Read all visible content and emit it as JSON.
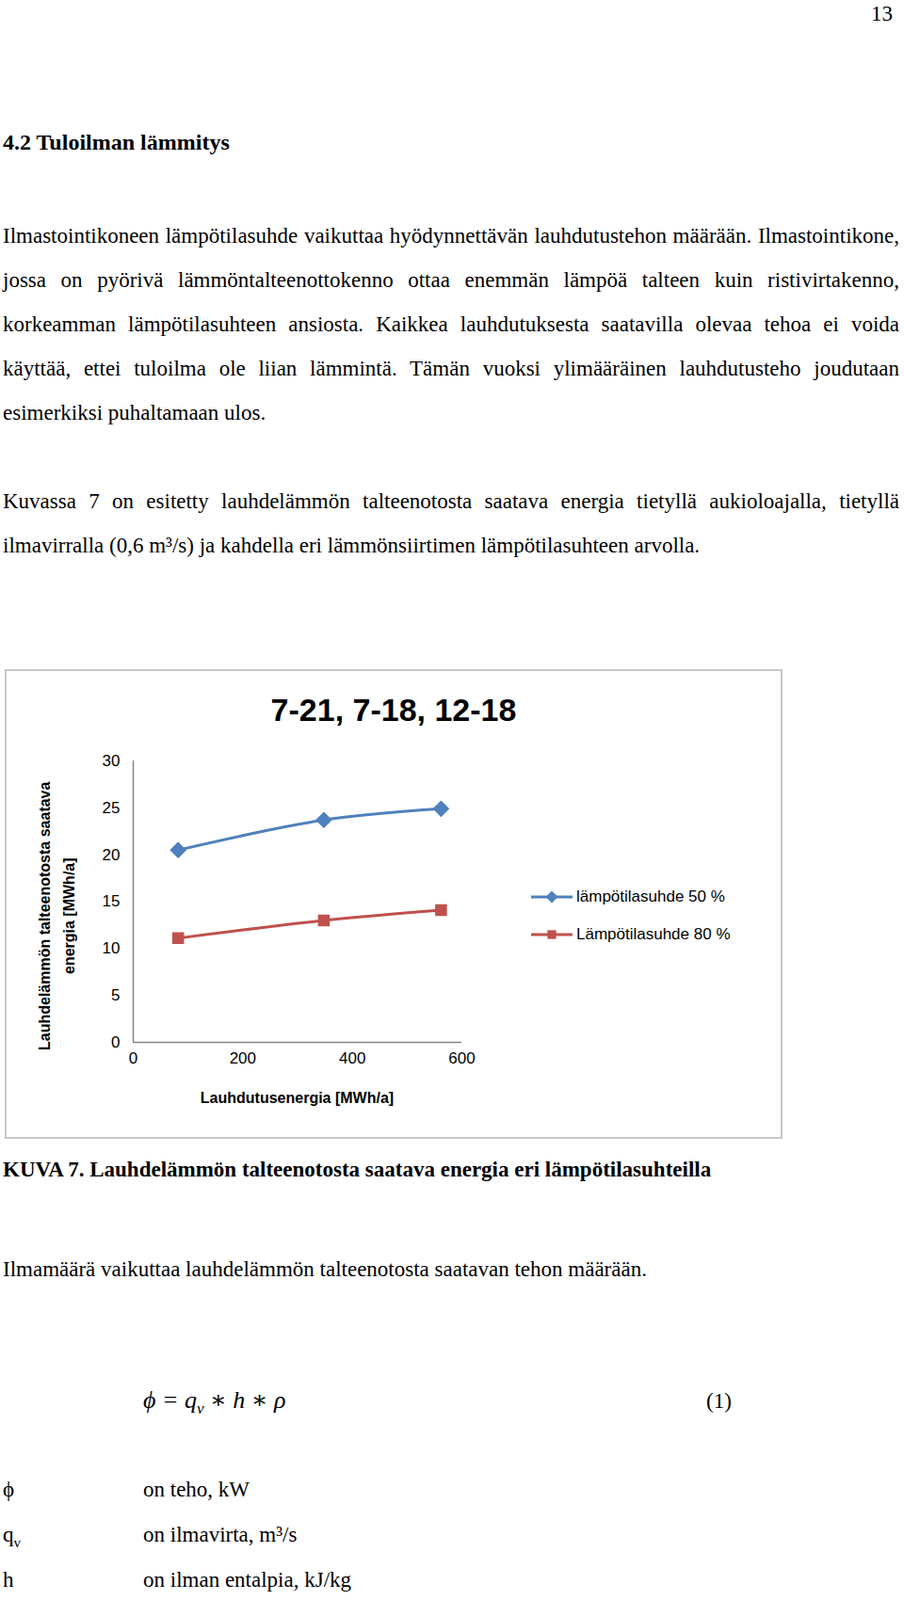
{
  "page_number": "13",
  "heading": "4.2 Tuloilman lämmitys",
  "paragraphs": [
    "Ilmastointikoneen lämpötilasuhde vaikuttaa hyödynnettävän lauhdutustehon määrään. Ilmastointikone, jossa on pyörivä lämmöntalteenottokenno ottaa enemmän lämpöä talteen kuin ristivirtakenno, korkeamman lämpötilasuhteen ansiosta. Kaikkea lauhdutuksesta saatavilla olevaa tehoa ei voida käyttää, ettei tuloilma ole liian lämmintä. Tämän vuoksi ylimääräinen lauhdutusteho joudutaan esimerkiksi puhaltamaan ulos.",
    "Kuvassa 7 on esitetty lauhdelämmön talteenotosta saatava energia tietyllä aukioloajalla, tietyllä ilmavirralla (0,6 m³/s) ja kahdella eri lämmönsiirtimen lämpötilasuhteen arvolla."
  ],
  "chart_data": {
    "type": "line",
    "title": "7-21, 7-18, 12-18",
    "x_label": "Lauhdutusenergia [MWh/a]",
    "y_label": "Lauhdelämmön talteenotosta saatava energia [MWh/a]",
    "xlim": [
      0,
      600
    ],
    "xticks": [
      0,
      200,
      400,
      600
    ],
    "ylim": [
      0,
      30
    ],
    "yticks": [
      0,
      5,
      10,
      15,
      20,
      25,
      30
    ],
    "grid": false,
    "legend": "right",
    "x": [
      82,
      348,
      562
    ],
    "series": [
      {
        "name": "lämpötilasuhde 50 %",
        "color": "#4f81bd",
        "marker": "diamond",
        "values": [
          20.5,
          23.7,
          24.9
        ]
      },
      {
        "name": "Lämpötilasuhde 80 %",
        "color": "#c0504d",
        "marker": "square",
        "values": [
          11.1,
          13.0,
          14.1
        ]
      }
    ]
  },
  "caption": "KUVA 7. Lauhdelämmön talteenotosta saatava energia eri lämpötilasuhteilla",
  "paragraph_after": "Ilmamäärä vaikuttaa lauhdelämmön talteenotosta saatavan tehon määrään.",
  "formula": {
    "parts": [
      {
        "text": "ϕ = q"
      },
      {
        "sub": "v"
      },
      {
        "text": " ∗ h ∗ ρ"
      }
    ],
    "number": "(1)"
  },
  "symbols": [
    {
      "symbol": "ϕ",
      "text": "on teho, kW"
    },
    {
      "symbol": "q",
      "sub": "v",
      "text": "on ilmavirta, m³/s"
    },
    {
      "symbol": "h",
      "text": "on ilman entalpia, kJ/kg"
    }
  ]
}
